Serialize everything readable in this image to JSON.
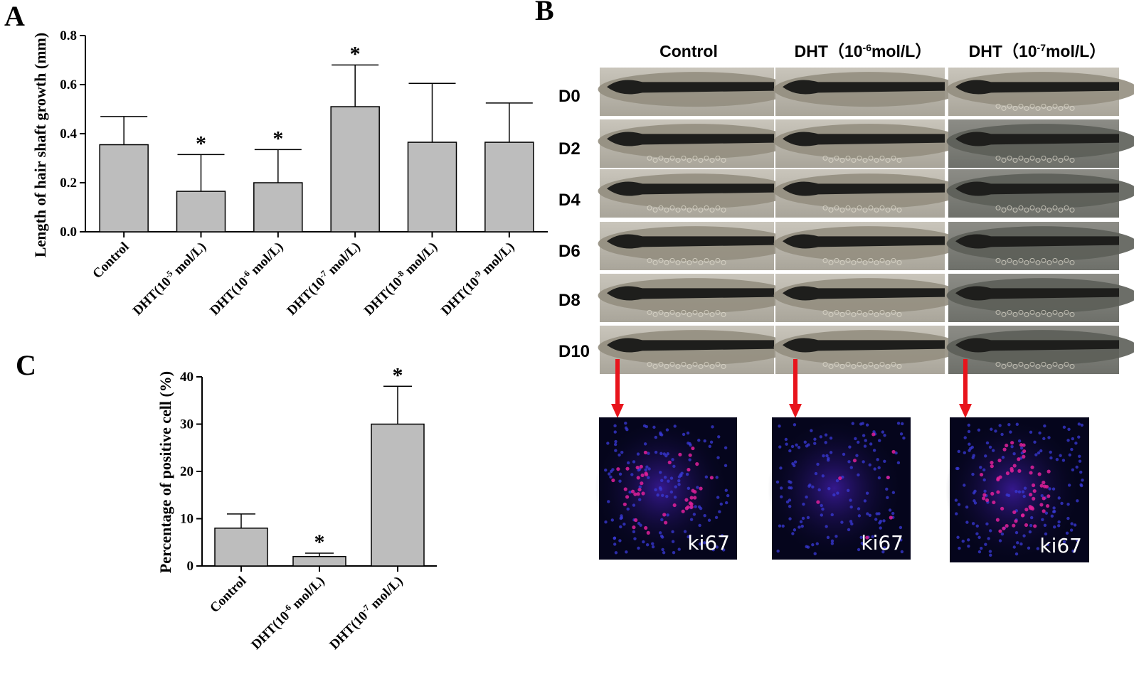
{
  "panels": {
    "a": "A",
    "b": "B",
    "c": "C"
  },
  "chart_data": [
    {
      "id": "A",
      "type": "bar",
      "ylabel": "Length of hair shaft growth (mm)",
      "ylim": [
        0,
        0.8
      ],
      "yticks": [
        "0.0",
        "0.2",
        "0.4",
        "0.6",
        "0.8"
      ],
      "categories": [
        {
          "main": "Control",
          "exp": ""
        },
        {
          "main": "DHT(10",
          "exp": "-5",
          "rest": "  mol/L)"
        },
        {
          "main": "DHT(10",
          "exp": "-6",
          "rest": "  mol/L)"
        },
        {
          "main": "DHT(10",
          "exp": "-7",
          "rest": "  mol/L)"
        },
        {
          "main": "DHT(10",
          "exp": "-8",
          "rest": "  mol/L)"
        },
        {
          "main": "DHT(10",
          "exp": "-9",
          "rest": "  mol/L)"
        }
      ],
      "values": [
        0.355,
        0.165,
        0.2,
        0.51,
        0.365,
        0.365
      ],
      "errors": [
        0.115,
        0.15,
        0.135,
        0.17,
        0.24,
        0.16
      ],
      "significance": [
        "",
        "*",
        "*",
        "*",
        "",
        ""
      ],
      "bar_color": "#bdbdbd"
    },
    {
      "id": "C",
      "type": "bar",
      "ylabel": "Percentage of positive cell (%)",
      "ylim": [
        0,
        40
      ],
      "yticks": [
        "0",
        "10",
        "20",
        "30",
        "40"
      ],
      "categories": [
        {
          "main": "Control",
          "exp": ""
        },
        {
          "main": "DHT(10",
          "exp": "-6",
          "rest": "  mol/L)"
        },
        {
          "main": "DHT(10",
          "exp": "-7",
          "rest": "  mol/L)"
        }
      ],
      "values": [
        8,
        2,
        30
      ],
      "errors": [
        3,
        0.7,
        8
      ],
      "significance": [
        "",
        "*",
        "*"
      ],
      "bar_color": "#bdbdbd"
    }
  ],
  "micrographs": {
    "columns": [
      {
        "main": "Control",
        "exp": "",
        "rest": ""
      },
      {
        "main": "DHT（10",
        "exp": "-6",
        "rest": "mol/L）"
      },
      {
        "main": "DHT（10",
        "exp": "-7",
        "rest": "mol/L）"
      }
    ],
    "rows": [
      "D0",
      "D2",
      "D4",
      "D6",
      "D8",
      "D10"
    ],
    "stain_label": "ki67",
    "arrow_color": "#e8141c"
  }
}
